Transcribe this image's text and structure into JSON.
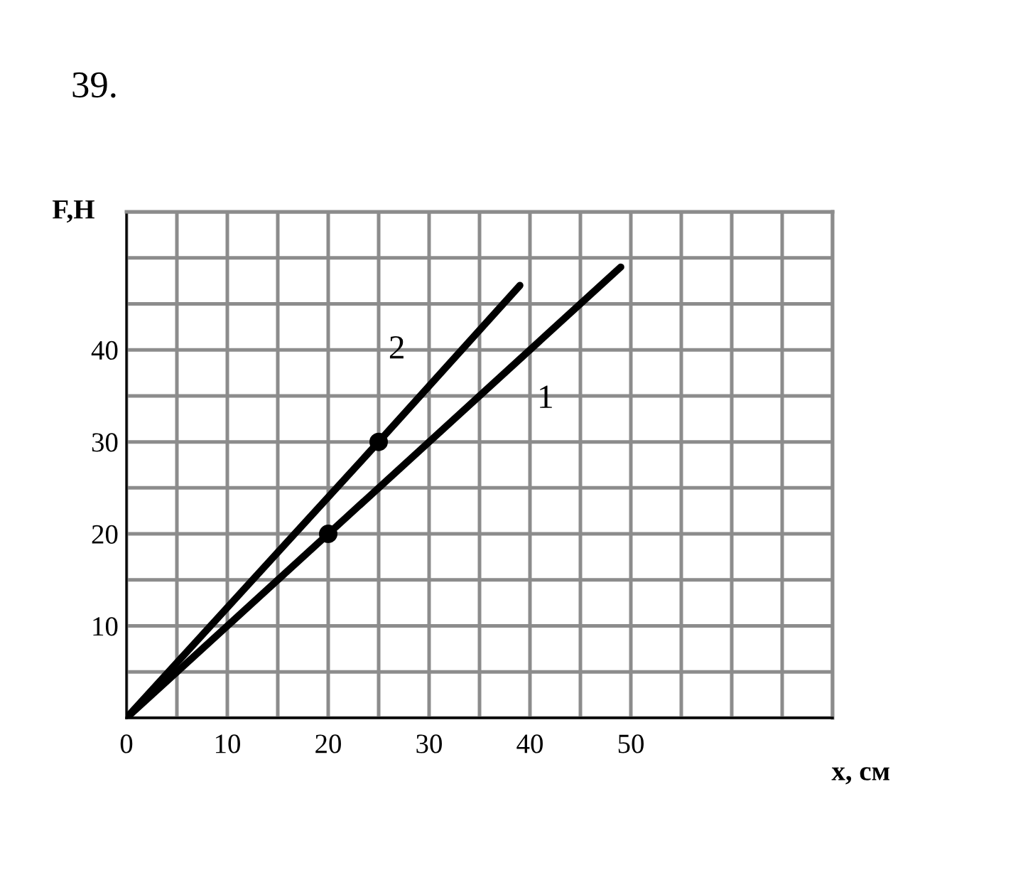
{
  "chart_data": {
    "type": "line",
    "title": "39.",
    "xlabel": "x, см",
    "ylabel": "F,Н",
    "xlim": [
      0,
      70
    ],
    "ylim": [
      0,
      55
    ],
    "xticks": [
      0,
      {
        "value": 5,
        "label": null
      },
      10,
      {
        "value": 15,
        "label": null
      },
      20,
      {
        "value": 25,
        "label": null
      },
      30,
      {
        "value": 35,
        "label": null
      },
      40,
      {
        "value": 45,
        "label": null
      },
      50,
      {
        "value": 55,
        "label": null
      },
      {
        "value": 60,
        "label": null
      },
      {
        "value": 65,
        "label": null
      },
      {
        "value": 70,
        "label": null
      }
    ],
    "yticks": [
      {
        "value": 0,
        "label": null
      },
      {
        "value": 5,
        "label": null
      },
      10,
      {
        "value": 15,
        "label": null
      },
      20,
      {
        "value": 25,
        "label": null
      },
      30,
      {
        "value": 35,
        "label": null
      },
      40,
      {
        "value": 45,
        "label": null
      },
      {
        "value": 50,
        "label": null
      },
      {
        "value": 55,
        "label": null
      }
    ],
    "grid": true,
    "series": [
      {
        "name": "1",
        "color": "#000000",
        "x": [
          0,
          20,
          49
        ],
        "values": [
          0,
          20,
          49
        ]
      },
      {
        "name": "2",
        "color": "#000000",
        "x": [
          0,
          25,
          39
        ],
        "values": [
          0,
          30,
          47
        ]
      },
      {
        "type": "scatter",
        "color": "#000000",
        "marker": "circle",
        "x": [
          20,
          25
        ],
        "values": [
          20,
          30
        ]
      }
    ]
  }
}
